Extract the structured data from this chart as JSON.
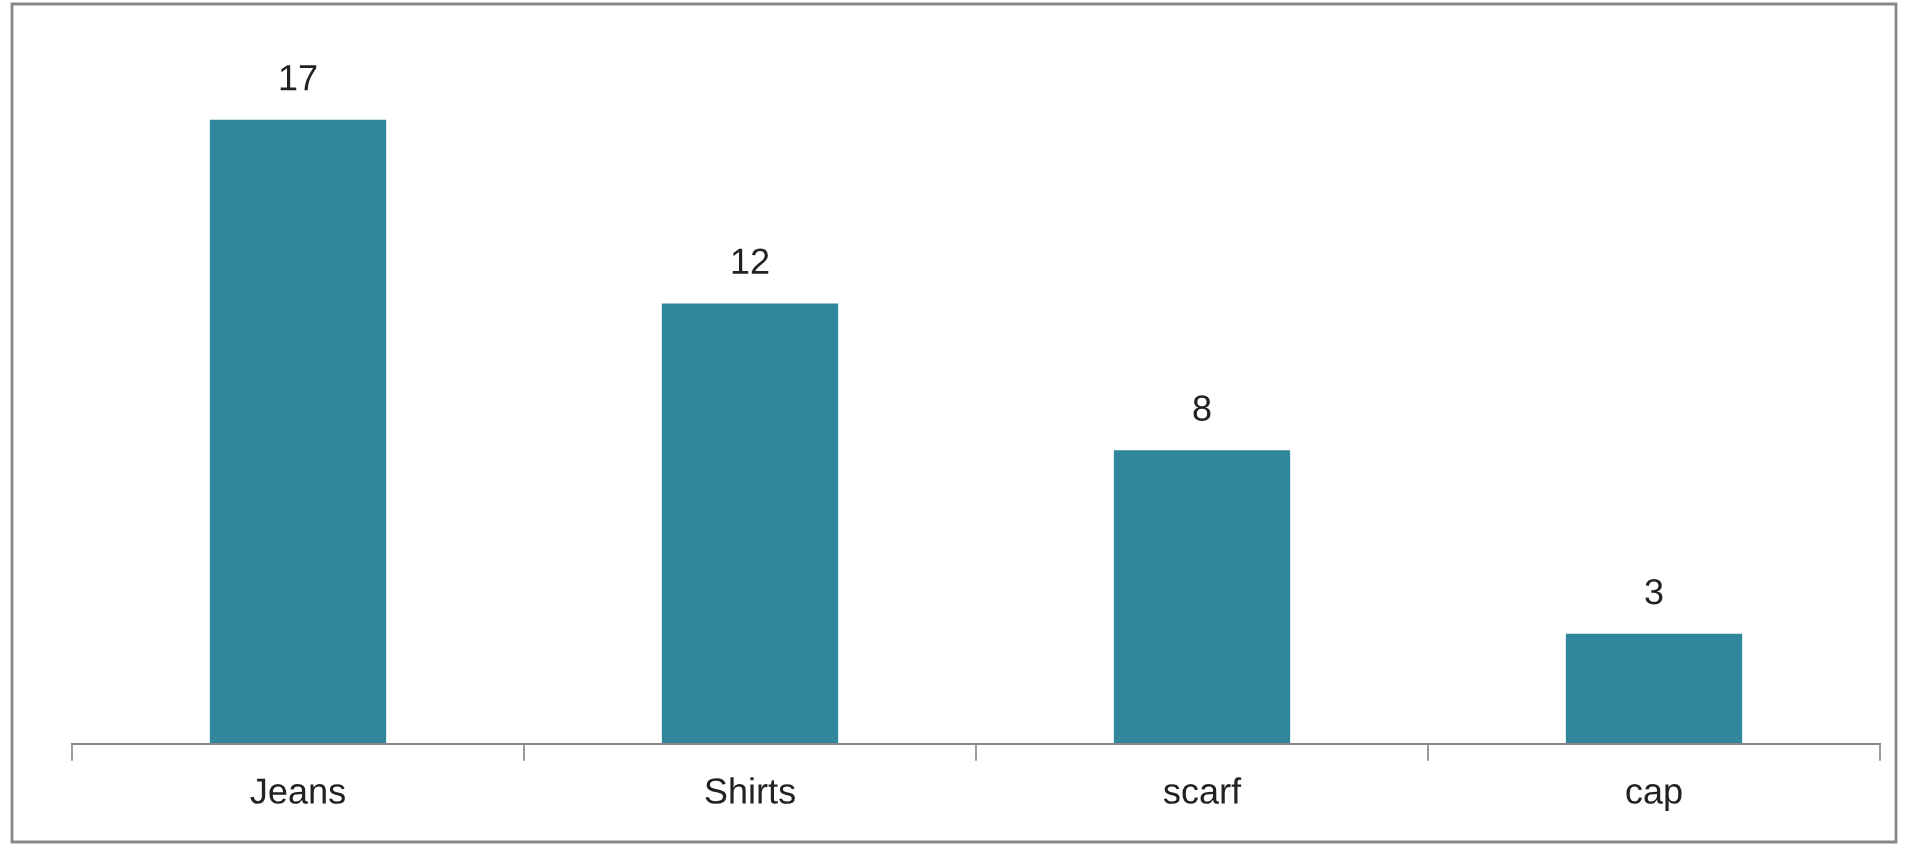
{
  "chart_data": {
    "type": "bar",
    "categories": [
      "Jeans",
      "Shirts",
      "scarf",
      "cap"
    ],
    "values": [
      17,
      12,
      8,
      3
    ],
    "color": "#31869b",
    "tick_labels": "x",
    "data_labels": true,
    "grid": false,
    "legend": false
  }
}
